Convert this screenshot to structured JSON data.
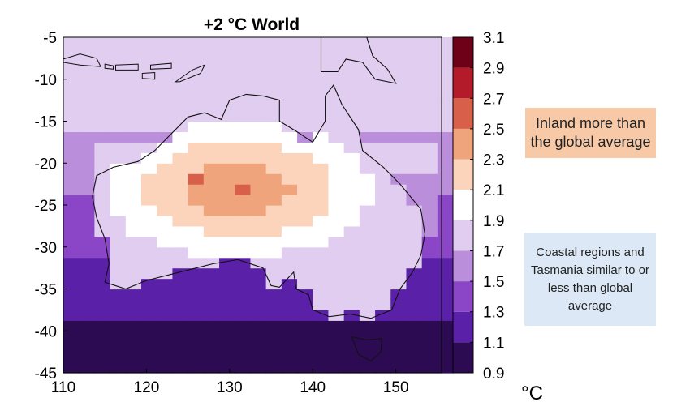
{
  "chart_data": {
    "type": "heatmap",
    "title": "+2 °C World",
    "xlabel": "",
    "ylabel": "",
    "x_ticks": [
      110,
      120,
      130,
      140,
      150
    ],
    "y_ticks": [
      -5,
      -10,
      -15,
      -20,
      -25,
      -30,
      -35,
      -40,
      -45
    ],
    "xlim": [
      110,
      155.5
    ],
    "ylim": [
      -45,
      -5
    ],
    "colorbar": {
      "ticks": [
        0.9,
        1.1,
        1.3,
        1.5,
        1.7,
        1.9,
        2.1,
        2.3,
        2.5,
        2.7,
        2.9,
        3.1
      ],
      "bands": [
        {
          "min": 0.9,
          "max": 1.1,
          "color": "#2d0b52"
        },
        {
          "min": 1.1,
          "max": 1.3,
          "color": "#5b20a8"
        },
        {
          "min": 1.3,
          "max": 1.5,
          "color": "#8a46c6"
        },
        {
          "min": 1.5,
          "max": 1.7,
          "color": "#bb8edb"
        },
        {
          "min": 1.7,
          "max": 1.9,
          "color": "#e1cdf0"
        },
        {
          "min": 1.9,
          "max": 2.1,
          "color": "#ffffff"
        },
        {
          "min": 2.1,
          "max": 2.3,
          "color": "#fcd4bc"
        },
        {
          "min": 2.3,
          "max": 2.5,
          "color": "#f0a47c"
        },
        {
          "min": 2.5,
          "max": 2.7,
          "color": "#d8604a"
        },
        {
          "min": 2.7,
          "max": 2.9,
          "color": "#b31b2b"
        },
        {
          "min": 2.9,
          "max": 3.1,
          "color": "#6e0018"
        }
      ],
      "unit": "°C"
    },
    "annotations": [
      "Inland more than the global average",
      "Coastal regions and Tasmania similar to or less than global average"
    ]
  },
  "notes": {
    "inland": "Inland more than the global average",
    "coastal": "Coastal regions and Tasmania similar to or less than global average"
  },
  "unit_label": "°C"
}
